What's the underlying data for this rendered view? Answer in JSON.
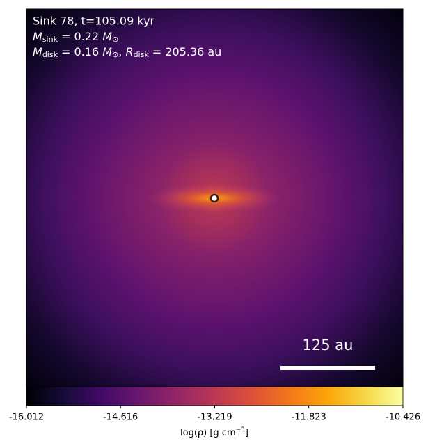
{
  "chart_data": {
    "type": "density-map",
    "title": "Sink 78, t=105.09 kyr",
    "sink_mass": {
      "symbol": "M",
      "subscript": "sink",
      "text": " = 0.22 ",
      "unit": "M",
      "unit_subscript": "⊙"
    },
    "disk": {
      "mass_symbol": "M",
      "mass_subscript": "disk",
      "mass_text": " = 0.16 ",
      "mass_unit": "M",
      "mass_unit_subscript": "⊙",
      "separator": ", ",
      "radius_symbol": "R",
      "radius_subscript": "disk",
      "radius_text": " = 205.36 au"
    },
    "scale_bar": {
      "length": 125,
      "label": "125 au"
    },
    "colorbar": {
      "label": "log(ρ) [g cm",
      "label_superscript": "−3",
      "label_end": "]",
      "clim": [
        -16.012,
        -10.426
      ],
      "cticks": [
        -16.012,
        -14.616,
        -13.219,
        -11.823,
        -10.426
      ]
    }
  }
}
